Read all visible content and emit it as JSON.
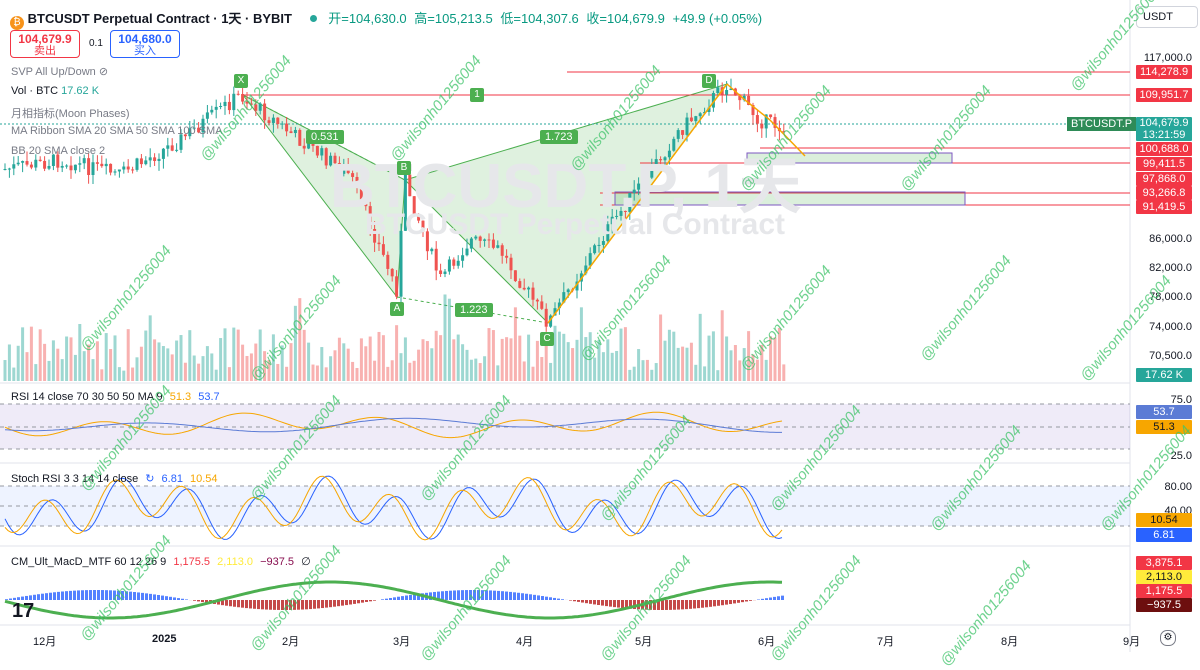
{
  "header": {
    "title": "BTCUSDT Perpetual Contract · 1天 · BYBIT",
    "open": "开=104,630.0",
    "high": "高=105,213.5",
    "low": "低=104,307.6",
    "close": "收=104,679.9",
    "change": "+49.9 (+0.05%)",
    "currency": "USDT"
  },
  "trade": {
    "sell_price": "104,679.9",
    "sell_label": "卖出",
    "spread": "0.1",
    "buy_price": "104,680.0",
    "buy_label": "买入"
  },
  "indicators": {
    "svp": "SVP All Up/Down",
    "vol_name": "Vol · BTC",
    "vol_value": "17.62 K",
    "moon": "月相指标(Moon Phases)",
    "ribbon": "MA Ribbon SMA 20 SMA 50 SMA 100 SMA",
    "bb": "BB 20 SMA close 2"
  },
  "watermark": {
    "symbol": "BTCUSDT.P, 1天",
    "desc": "BTCUSDT Perpetual Contract",
    "user": "@wilsonh01256004"
  },
  "price_axis": [
    "117,000.0",
    "86,000.0",
    "82,000.0",
    "78,000.0",
    "74,000.0",
    "70,500.0"
  ],
  "price_tags": {
    "t1": "114,278.9",
    "t2": "109,951.7",
    "sym": "BTCUSDT.P",
    "last": "104,679.9",
    "countdown": "13:21:59",
    "t3": "100,688.0",
    "t4": "99,411.5",
    "t5": "97,868.0",
    "t6": "93,266.8",
    "t7": "91,419.5",
    "vol": "17.62 K"
  },
  "harmonic": {
    "x": "X",
    "a": "A",
    "b": "B",
    "c": "C",
    "d": "D",
    "one": "1",
    "r1": "0.531",
    "r2": "1.723",
    "r3": "1.223"
  },
  "rsi": {
    "label": "RSI 14 close 70 30 50 50 MA 9",
    "v1": "51.3",
    "v2": "53.7",
    "axis": [
      "75.0",
      "25.0"
    ],
    "tag1": "53.7",
    "tag2": "51.3"
  },
  "stoch": {
    "label": "Stoch RSI 3 3 14 14 close",
    "v1": "6.81",
    "v2": "10.54",
    "axis": [
      "80.00",
      "40.00"
    ],
    "tag1": "10.54",
    "tag2": "6.81"
  },
  "macd": {
    "label": "CM_Ult_MacD_MTF 60 12 26 9",
    "v1": "1,175.5",
    "v2": "2,113.0",
    "v3": "−937.5",
    "sym": "∅",
    "tags": [
      "3,875.1",
      "2,113.0",
      "1,175.5",
      "−937.5"
    ]
  },
  "time_axis": [
    "12月",
    "2025",
    "2月",
    "3月",
    "4月",
    "5月",
    "6月",
    "7月",
    "8月",
    "9月"
  ],
  "colors": {
    "up": "#26a69a",
    "down": "#ef5350",
    "pattern": "#4caf50",
    "accent": "#2962ff"
  }
}
